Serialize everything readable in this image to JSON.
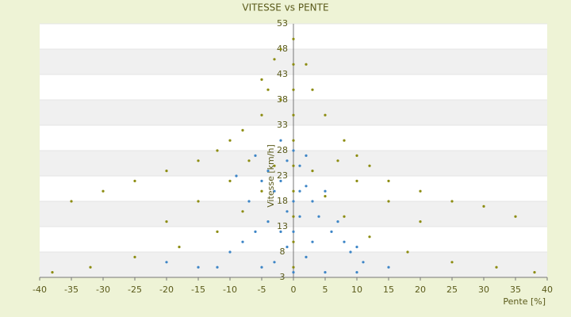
{
  "chart_data": {
    "type": "scatter",
    "title": "VITESSE vs PENTE",
    "x_label": "Pente [%]",
    "y_label": "Vitesse [km/h]",
    "xlim": [
      -40,
      40
    ],
    "xticks": [
      -40,
      -35,
      -30,
      -25,
      -20,
      -15,
      -10,
      -5,
      0,
      5,
      10,
      15,
      20,
      25,
      30,
      35,
      40
    ],
    "ylim": [
      3,
      53
    ],
    "yticks": [
      3,
      8,
      13,
      18,
      23,
      28,
      33,
      38,
      43,
      48,
      53
    ],
    "series": [
      {
        "color": "#8c8c10",
        "x": [
          0,
          0,
          0,
          0,
          0,
          0,
          0,
          0,
          0,
          0,
          -2,
          -3,
          -5,
          -4,
          -2,
          -5,
          -8,
          -10,
          -12,
          -15,
          -20,
          -25,
          -30,
          -35,
          2,
          3,
          5,
          8,
          10,
          12,
          15,
          20,
          25,
          30,
          35,
          -3,
          -5,
          -8,
          -12,
          -18,
          -25,
          -32,
          -38,
          3,
          5,
          8,
          12,
          18,
          25,
          32,
          38,
          -7,
          -10,
          -15,
          7,
          10,
          15,
          20,
          -20
        ],
        "y": [
          50,
          45,
          40,
          35,
          30,
          25,
          20,
          15,
          10,
          5,
          48,
          46,
          42,
          40,
          38,
          35,
          32,
          30,
          28,
          26,
          24,
          22,
          20,
          18,
          45,
          40,
          35,
          30,
          27,
          25,
          22,
          20,
          18,
          17,
          15,
          25,
          20,
          16,
          12,
          9,
          7,
          5,
          4,
          24,
          19,
          15,
          11,
          8,
          6,
          5,
          4,
          26,
          22,
          18,
          26,
          22,
          18,
          14,
          14
        ]
      },
      {
        "color": "#3d85c6",
        "x": [
          0,
          -1,
          1,
          -2,
          2,
          -3,
          3,
          0,
          -1,
          1,
          4,
          6,
          8,
          10,
          -4,
          -6,
          -8,
          -10,
          -5,
          -7,
          5,
          7,
          9,
          11,
          -12,
          -15,
          -3,
          2,
          0,
          -2,
          3,
          -5,
          5,
          10,
          15,
          -20,
          0,
          -1,
          1,
          -4,
          2,
          -2,
          -6,
          -9
        ],
        "y": [
          28,
          26,
          25,
          22,
          21,
          20,
          18,
          18,
          16,
          15,
          15,
          12,
          10,
          9,
          14,
          12,
          10,
          8,
          22,
          18,
          20,
          14,
          8,
          6,
          5,
          5,
          6,
          7,
          12,
          12,
          10,
          5,
          4,
          4,
          5,
          6,
          4,
          9,
          20,
          24,
          27,
          30,
          27,
          23
        ]
      }
    ]
  }
}
